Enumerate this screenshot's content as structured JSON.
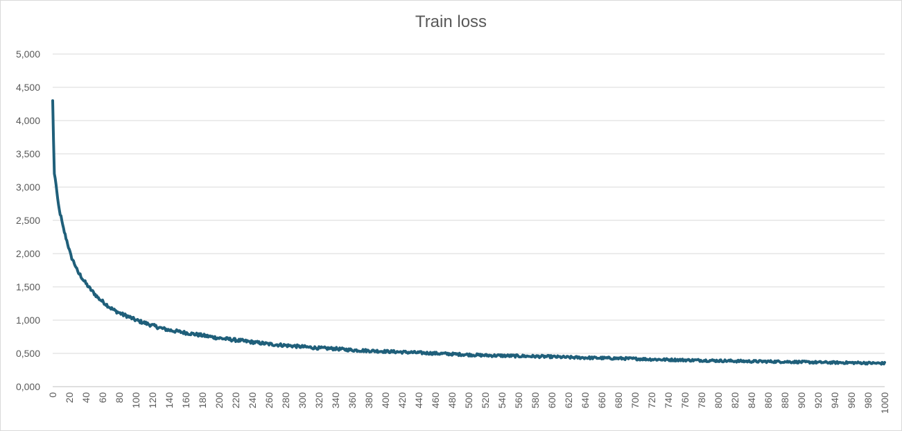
{
  "chart_data": {
    "type": "line",
    "title": "Train loss",
    "xlabel": "",
    "ylabel": "",
    "xlim": [
      0,
      1000
    ],
    "ylim": [
      0,
      5
    ],
    "grid": true,
    "legend": "none",
    "line_color": "#1f5f7a",
    "grid_color": "#d9d9d9",
    "y_ticks": [
      "0,000",
      "0,500",
      "1,000",
      "1,500",
      "2,000",
      "2,500",
      "3,000",
      "3,500",
      "4,000",
      "4,500",
      "5,000"
    ],
    "x_ticks": [
      "0",
      "20",
      "40",
      "60",
      "80",
      "100",
      "120",
      "140",
      "160",
      "180",
      "200",
      "220",
      "240",
      "260",
      "280",
      "300",
      "320",
      "340",
      "360",
      "380",
      "400",
      "420",
      "440",
      "460",
      "480",
      "500",
      "520",
      "540",
      "560",
      "580",
      "600",
      "620",
      "640",
      "660",
      "680",
      "700",
      "720",
      "740",
      "760",
      "780",
      "800",
      "820",
      "840",
      "860",
      "880",
      "900",
      "920",
      "940",
      "960",
      "980",
      "1000"
    ],
    "series": [
      {
        "x": [
          0,
          1,
          2,
          4,
          6,
          8,
          10,
          12,
          15,
          18,
          20,
          22,
          25,
          28,
          30,
          33,
          36,
          40,
          45,
          50,
          55,
          60,
          65,
          70,
          75,
          80,
          85,
          90,
          95,
          100,
          110,
          120,
          130,
          140,
          150,
          160,
          170,
          180,
          190,
          200,
          220,
          240,
          260,
          280,
          300,
          320,
          340,
          360,
          380,
          400,
          420,
          440,
          460,
          480,
          500,
          520,
          540,
          560,
          580,
          600,
          620,
          640,
          660,
          680,
          700,
          720,
          740,
          760,
          780,
          800,
          820,
          840,
          860,
          880,
          900,
          920,
          940,
          960,
          980,
          1000
        ],
        "y": [
          4.3,
          3.7,
          3.2,
          3.05,
          2.8,
          2.65,
          2.55,
          2.42,
          2.28,
          2.15,
          2.05,
          1.96,
          1.88,
          1.8,
          1.72,
          1.68,
          1.62,
          1.55,
          1.47,
          1.4,
          1.33,
          1.28,
          1.23,
          1.18,
          1.14,
          1.11,
          1.08,
          1.06,
          1.03,
          1.0,
          0.96,
          0.92,
          0.88,
          0.85,
          0.83,
          0.81,
          0.79,
          0.77,
          0.75,
          0.73,
          0.7,
          0.67,
          0.64,
          0.62,
          0.6,
          0.58,
          0.57,
          0.55,
          0.54,
          0.53,
          0.52,
          0.51,
          0.5,
          0.49,
          0.48,
          0.47,
          0.465,
          0.46,
          0.455,
          0.45,
          0.44,
          0.435,
          0.43,
          0.425,
          0.42,
          0.41,
          0.405,
          0.4,
          0.395,
          0.39,
          0.385,
          0.38,
          0.378,
          0.375,
          0.37,
          0.365,
          0.362,
          0.36,
          0.355,
          0.35
        ]
      }
    ]
  }
}
